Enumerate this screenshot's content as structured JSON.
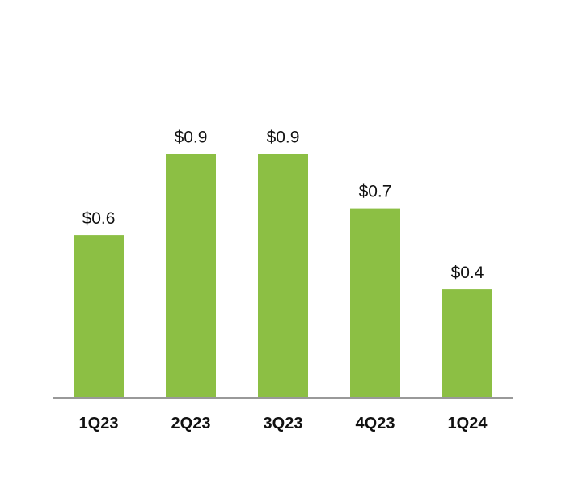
{
  "chart_data": {
    "type": "bar",
    "categories": [
      "1Q23",
      "2Q23",
      "3Q23",
      "4Q23",
      "1Q24"
    ],
    "values": [
      0.6,
      0.9,
      0.9,
      0.7,
      0.4
    ],
    "data_labels": [
      "$0.6",
      "$0.9",
      "$0.9",
      "$0.7",
      "$0.4"
    ],
    "ylim": [
      0,
      1.35
    ],
    "grid": false,
    "legend": "none",
    "colors": {
      "bar": "#8cbf44",
      "axis": "#999999",
      "text": "#111111"
    }
  }
}
